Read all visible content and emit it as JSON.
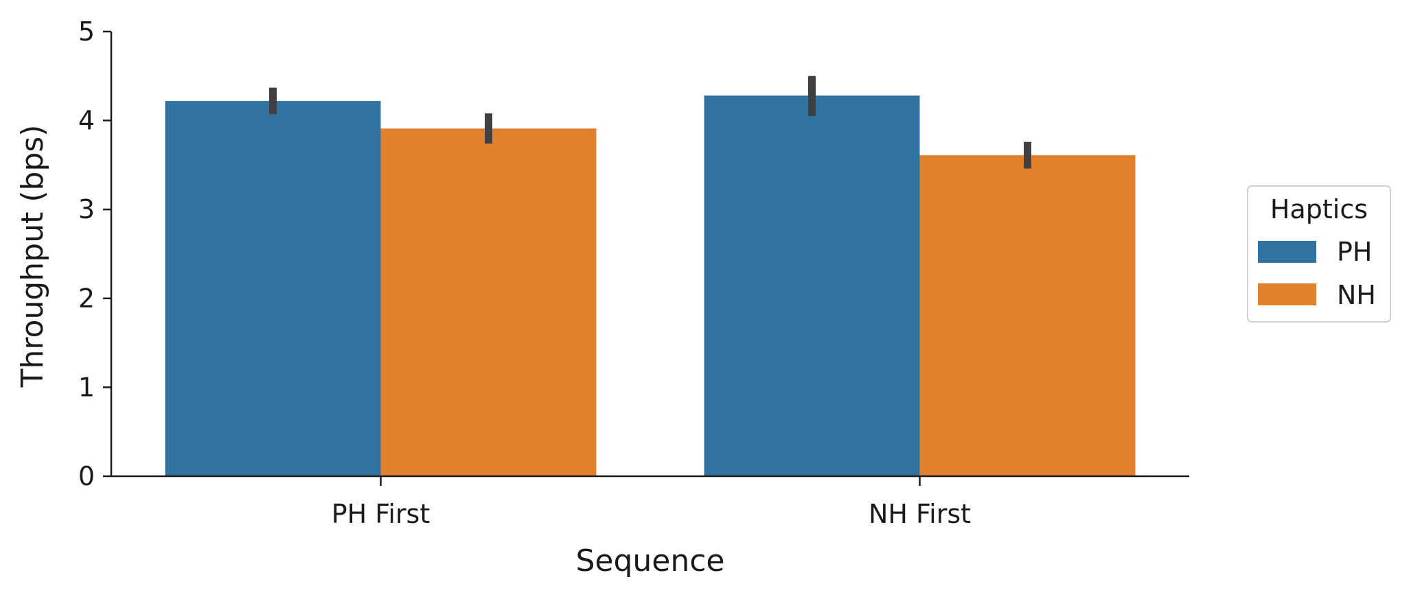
{
  "chart_data": {
    "type": "bar",
    "title": "",
    "xlabel": "Sequence",
    "ylabel": "Throughput (bps)",
    "categories": [
      "PH First",
      "NH First"
    ],
    "series": [
      {
        "name": "PH",
        "color": "#3274a1",
        "values": [
          4.22,
          4.28
        ],
        "ci_low": [
          4.07,
          4.05
        ],
        "ci_high": [
          4.37,
          4.5
        ]
      },
      {
        "name": "NH",
        "color": "#e1812c",
        "values": [
          3.91,
          3.61
        ],
        "ci_low": [
          3.74,
          3.46
        ],
        "ci_high": [
          4.08,
          3.76
        ]
      }
    ],
    "ylim": [
      0,
      5
    ],
    "yticks": [
      0,
      1,
      2,
      3,
      4,
      5
    ],
    "grid": false,
    "legend": {
      "title": "Haptics",
      "placement": "right, outside plot",
      "entries": [
        "PH",
        "NH"
      ]
    },
    "error_bar_color": "#404040"
  }
}
